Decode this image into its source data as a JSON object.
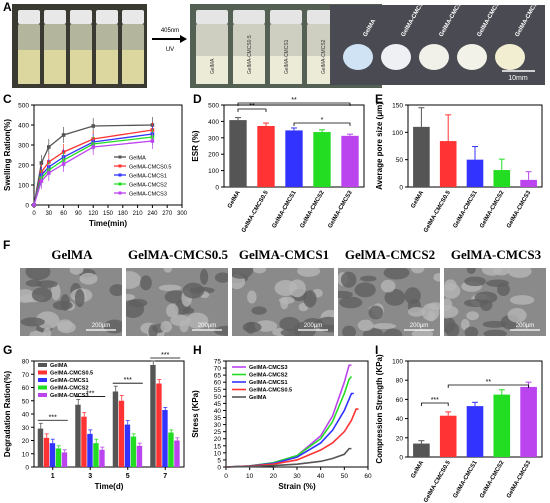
{
  "panels": {
    "a": "A",
    "b": "B",
    "c": "C",
    "d": "D",
    "e": "E",
    "f": "F",
    "g": "G",
    "h": "H",
    "i": "I"
  },
  "photo_a": {
    "arrow_label_1": "405nm",
    "arrow_label_2": "UV",
    "vial_labels": [
      "GelMA",
      "GelMA-CMCS0.5",
      "GelMA-CMCS1",
      "GelMA-CMCS2",
      "GelMA-CMCS3"
    ]
  },
  "photo_b": {
    "disc_labels": [
      "GelMA",
      "GelMA-CMCS0.5",
      "GelMA-CMCS1",
      "GelMA-CMCS2",
      "GelMA-CMCS3"
    ],
    "scale_label": "10mm"
  },
  "sem": {
    "titles": [
      "GelMA",
      "GelMA-CMCS0.5",
      "GelMA-CMCS1",
      "GelMA-CMCS2",
      "GelMA-CMCS3"
    ],
    "scale_label": "200μm"
  },
  "colors": {
    "GelMA": "#555555",
    "GelMA-CMCS0.5": "#ff3333",
    "GelMA-CMCS1": "#3333ff",
    "GelMA-CMCS2": "#22dd22",
    "GelMA-CMCS3": "#bb44ee"
  },
  "chart_data": [
    {
      "id": "C",
      "type": "line",
      "xlabel": "Time(min)",
      "ylabel": "Swelling Ration(%)",
      "xlim": [
        0,
        300
      ],
      "ylim": [
        0,
        500
      ],
      "xticks": [
        0,
        30,
        60,
        90,
        120,
        150,
        180,
        210,
        240,
        270,
        300
      ],
      "yticks": [
        0,
        100,
        200,
        300,
        400,
        500
      ],
      "x": [
        0,
        15,
        30,
        60,
        120,
        240
      ],
      "legend_position": "lower-right",
      "series": [
        {
          "name": "GelMA",
          "values": [
            0,
            210,
            290,
            350,
            395,
            400
          ]
        },
        {
          "name": "GelMA-CMCS0.5",
          "values": [
            0,
            165,
            215,
            265,
            330,
            375
          ]
        },
        {
          "name": "GelMA-CMCS1",
          "values": [
            0,
            150,
            190,
            240,
            315,
            355
          ]
        },
        {
          "name": "GelMA-CMCS2",
          "values": [
            0,
            135,
            175,
            225,
            305,
            340
          ]
        },
        {
          "name": "GelMA-CMCS3",
          "values": [
            0,
            120,
            160,
            205,
            290,
            320
          ]
        }
      ]
    },
    {
      "id": "D",
      "type": "bar",
      "ylabel": "ESR (%)",
      "ylim": [
        0,
        500
      ],
      "yticks": [
        0,
        100,
        200,
        300,
        400,
        500
      ],
      "categories": [
        "GelMA",
        "GelMA-CMCS0.5",
        "GelMA-CMCS1",
        "GelMA-CMCS2",
        "GelMA-CMCS3"
      ],
      "values": [
        408,
        372,
        345,
        335,
        312
      ],
      "errors": [
        15,
        18,
        15,
        14,
        10
      ],
      "significance": [
        {
          "from": 0,
          "to": 4,
          "label": "**"
        },
        {
          "from": 0,
          "to": 1,
          "label": "**"
        },
        {
          "from": 2,
          "to": 4,
          "label": "*"
        }
      ]
    },
    {
      "id": "E",
      "type": "bar",
      "ylabel": "Average pore size (μm)",
      "ylim": [
        0,
        150
      ],
      "yticks": [
        0,
        50,
        100,
        150
      ],
      "categories": [
        "GelMA",
        "GelMA-CMCS0.5",
        "GelMA-CMCS1",
        "GelMA-CMCS2",
        "GelMA-CMCS3"
      ],
      "values": [
        110,
        84,
        50,
        31,
        13
      ],
      "errors": [
        35,
        48,
        24,
        20,
        15
      ]
    },
    {
      "id": "G",
      "type": "bar",
      "xlabel": "Time(d)",
      "ylabel": "Degradation Ration(%)",
      "ylim": [
        0,
        80
      ],
      "yticks": [
        0,
        10,
        20,
        30,
        40,
        50,
        60,
        70,
        80
      ],
      "categories": [
        "1",
        "3",
        "5",
        "7"
      ],
      "legend_position": "top-left",
      "series": [
        {
          "name": "GelMA",
          "values": [
            29,
            47,
            57,
            77
          ],
          "errors": [
            4,
            4,
            4,
            3
          ]
        },
        {
          "name": "GelMA-CMCS0.5",
          "values": [
            22,
            38,
            50,
            63
          ],
          "errors": [
            3,
            3,
            4,
            3
          ]
        },
        {
          "name": "GelMA-CMCS1",
          "values": [
            18,
            25,
            32,
            43
          ],
          "errors": [
            3,
            3,
            3,
            2
          ]
        },
        {
          "name": "GelMA-CMCS2",
          "values": [
            14,
            18,
            23,
            26
          ],
          "errors": [
            2,
            3,
            2,
            2
          ]
        },
        {
          "name": "GelMA-CMCS3",
          "values": [
            11,
            13,
            16,
            20
          ],
          "errors": [
            2,
            2,
            2,
            2
          ]
        }
      ],
      "significance_labels": [
        "***",
        "***",
        "***",
        "***"
      ]
    },
    {
      "id": "H",
      "type": "line",
      "xlabel": "Strain (%)",
      "ylabel": "Stress (KPa)",
      "xlim": [
        0,
        60
      ],
      "ylim": [
        0,
        75
      ],
      "xticks": [
        0,
        10,
        20,
        30,
        40,
        50,
        60
      ],
      "yticks": [
        0,
        5,
        10,
        15,
        20,
        25,
        30,
        35,
        40,
        45,
        50,
        55,
        60,
        65,
        70,
        75
      ],
      "legend_position": "top-left",
      "series": [
        {
          "name": "GelMA-CMCS3",
          "x": [
            0,
            10,
            20,
            30,
            40,
            45,
            50,
            52,
            53
          ],
          "values": [
            0,
            0.8,
            3,
            8,
            22,
            36,
            60,
            72,
            72
          ]
        },
        {
          "name": "GelMA-CMCS2",
          "x": [
            0,
            10,
            20,
            30,
            40,
            45,
            50,
            52,
            53
          ],
          "values": [
            0,
            0.8,
            3,
            8,
            20,
            32,
            52,
            62,
            64
          ]
        },
        {
          "name": "GelMA-CMCS1",
          "x": [
            0,
            10,
            20,
            30,
            40,
            45,
            50,
            52,
            53,
            54
          ],
          "values": [
            0,
            0.7,
            2.5,
            7,
            17,
            26,
            40,
            48,
            52,
            52
          ]
        },
        {
          "name": "GelMA-CMCS0.5",
          "x": [
            0,
            10,
            20,
            30,
            40,
            45,
            50,
            53,
            55,
            56
          ],
          "values": [
            0,
            0.6,
            2,
            5,
            12,
            17,
            25,
            33,
            41,
            41
          ]
        },
        {
          "name": "GelMA",
          "x": [
            0,
            10,
            20,
            30,
            40,
            45,
            50,
            52,
            53
          ],
          "values": [
            0,
            0.3,
            1,
            2,
            4,
            6,
            9,
            13,
            13
          ]
        }
      ]
    },
    {
      "id": "I",
      "type": "bar",
      "ylabel": "Compression Strength (KPa)",
      "ylim": [
        0,
        100
      ],
      "yticks": [
        0,
        20,
        40,
        60,
        80,
        100
      ],
      "categories": [
        "GelMA",
        "GelMA-CMCS0.5",
        "GelMA-CMCS1",
        "GelMA-CMCS2",
        "GelMA-CMCS3"
      ],
      "values": [
        14,
        43,
        53,
        65,
        73
      ],
      "errors": [
        3,
        4,
        4,
        5,
        5
      ],
      "significance": [
        {
          "from": 0,
          "to": 1,
          "label": "***"
        },
        {
          "from": 1,
          "to": 4,
          "label": "**"
        }
      ]
    }
  ]
}
